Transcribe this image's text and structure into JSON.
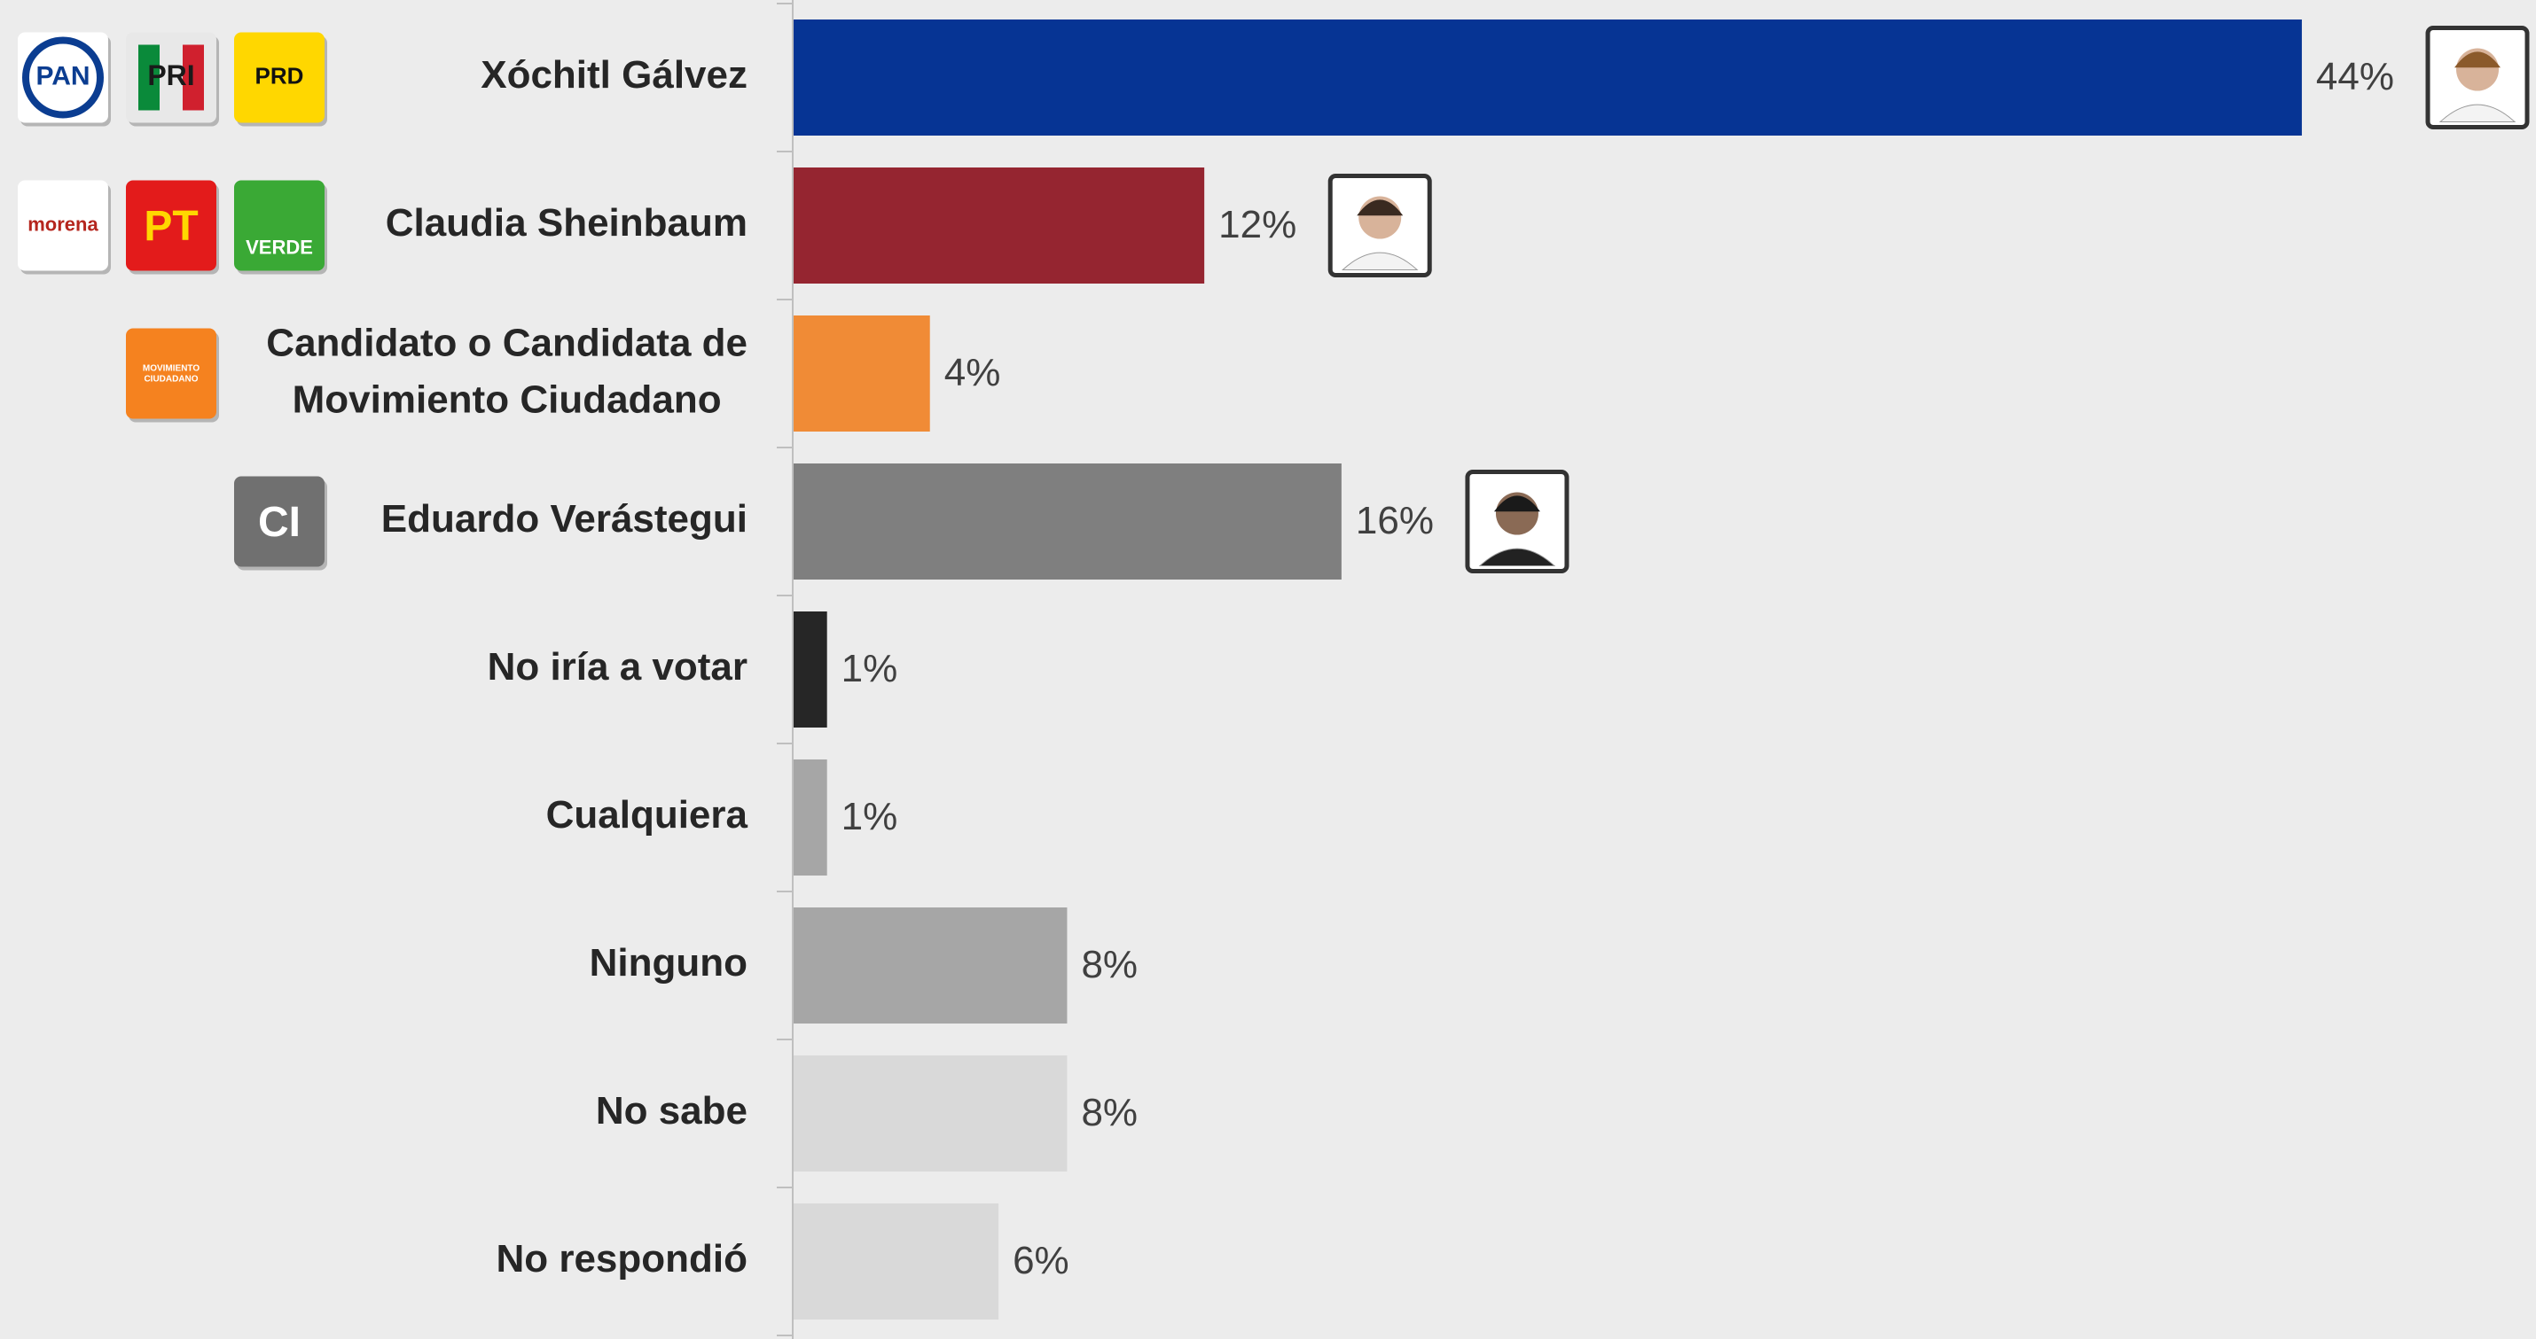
{
  "chart_data": {
    "type": "bar",
    "orientation": "horizontal",
    "categories": [
      "Xóchitl Gálvez",
      "Claudia Sheinbaum",
      "Candidato o Candidata de Movimiento Ciudadano",
      "Eduardo Verástegui",
      "No iría a votar",
      "Cualquiera",
      "Ninguno",
      "No sabe",
      "No respondió"
    ],
    "values": [
      44,
      12,
      4,
      16,
      1,
      1,
      8,
      8,
      6
    ],
    "value_labels": [
      "44%",
      "12%",
      "4%",
      "16%",
      "1%",
      "1%",
      "8%",
      "8%",
      "6%"
    ],
    "colors": [
      "#063494",
      "#952530",
      "#f08b36",
      "#7f7f7f",
      "#262626",
      "#a6a6a6",
      "#a6a6a6",
      "#d9d9d9",
      "#d9d9d9"
    ],
    "party_logos": [
      [
        "PAN",
        "PRI",
        "PRD"
      ],
      [
        "morena",
        "PT",
        "VERDE"
      ],
      [
        "MOVIMIENTO CIUDADANO"
      ],
      [
        "CI"
      ],
      [],
      [],
      [],
      [],
      []
    ],
    "xlim": [
      0,
      50
    ]
  }
}
